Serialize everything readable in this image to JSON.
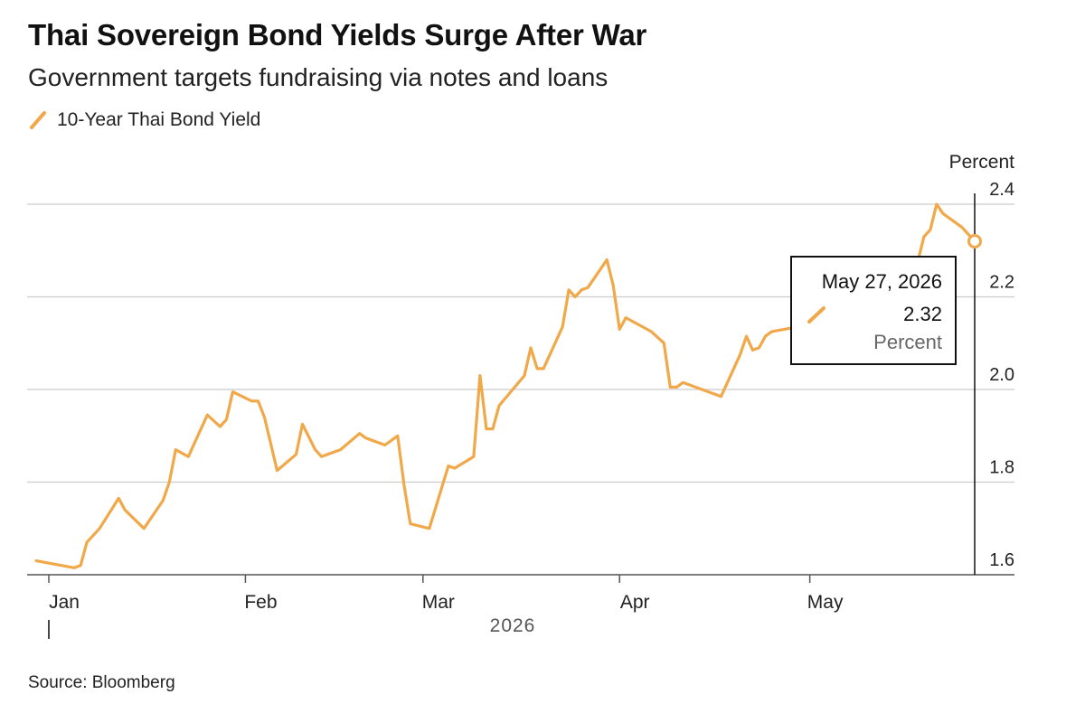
{
  "header": {
    "title": "Thai Sovereign Bond Yields Surge After War",
    "subtitle": "Government targets fundraising via notes and loans"
  },
  "legend": {
    "label": "10-Year Thai Bond Yield",
    "color": "#f0a848"
  },
  "source": "Source: Bloomberg",
  "tooltip": {
    "date": "May 27, 2026",
    "value": "2.32",
    "unit": "Percent"
  },
  "chart_data": {
    "type": "line",
    "title": "Thai Sovereign Bond Yields Surge After War",
    "subtitle": "Government targets fundraising via notes and loans",
    "ylabel": "Percent",
    "xlabel": "2026",
    "ylim": [
      1.6,
      2.4
    ],
    "yticks": [
      1.6,
      1.8,
      2.0,
      2.2,
      2.4
    ],
    "ytick_labels": [
      "1.6",
      "1.8",
      "2.0",
      "2.2",
      "2.4"
    ],
    "xticks": [
      {
        "label": "Jan",
        "date": "2026-01-01"
      },
      {
        "label": "Feb",
        "date": "2026-02-01"
      },
      {
        "label": "Mar",
        "date": "2026-03-01"
      },
      {
        "label": "Apr",
        "date": "2026-04-01"
      },
      {
        "label": "May",
        "date": "2026-05-01"
      }
    ],
    "grid": true,
    "legend_position": "top-left",
    "series": [
      {
        "name": "10-Year Thai Bond Yield",
        "color": "#f0a848",
        "points": [
          [
            "2025-12-30",
            1.63
          ],
          [
            "2026-01-05",
            1.615
          ],
          [
            "2026-01-06",
            1.62
          ],
          [
            "2026-01-07",
            1.67
          ],
          [
            "2026-01-09",
            1.7
          ],
          [
            "2026-01-12",
            1.765
          ],
          [
            "2026-01-13",
            1.74
          ],
          [
            "2026-01-16",
            1.7
          ],
          [
            "2026-01-19",
            1.76
          ],
          [
            "2026-01-20",
            1.8
          ],
          [
            "2026-01-21",
            1.87
          ],
          [
            "2026-01-23",
            1.855
          ],
          [
            "2026-01-26",
            1.945
          ],
          [
            "2026-01-28",
            1.92
          ],
          [
            "2026-01-29",
            1.935
          ],
          [
            "2026-01-30",
            1.995
          ],
          [
            "2026-02-02",
            1.975
          ],
          [
            "2026-02-03",
            1.975
          ],
          [
            "2026-02-04",
            1.94
          ],
          [
            "2026-02-06",
            1.825
          ],
          [
            "2026-02-09",
            1.86
          ],
          [
            "2026-02-10",
            1.925
          ],
          [
            "2026-02-12",
            1.87
          ],
          [
            "2026-02-13",
            1.855
          ],
          [
            "2026-02-16",
            1.87
          ],
          [
            "2026-02-19",
            1.905
          ],
          [
            "2026-02-20",
            1.895
          ],
          [
            "2026-02-23",
            1.88
          ],
          [
            "2026-02-25",
            1.9
          ],
          [
            "2026-02-26",
            1.795
          ],
          [
            "2026-02-27",
            1.71
          ],
          [
            "2026-03-02",
            1.7
          ],
          [
            "2026-03-05",
            1.835
          ],
          [
            "2026-03-06",
            1.83
          ],
          [
            "2026-03-09",
            1.855
          ],
          [
            "2026-03-10",
            2.03
          ],
          [
            "2026-03-11",
            1.915
          ],
          [
            "2026-03-12",
            1.915
          ],
          [
            "2026-03-13",
            1.965
          ],
          [
            "2026-03-17",
            2.03
          ],
          [
            "2026-03-18",
            2.09
          ],
          [
            "2026-03-19",
            2.045
          ],
          [
            "2026-03-20",
            2.045
          ],
          [
            "2026-03-23",
            2.135
          ],
          [
            "2026-03-24",
            2.215
          ],
          [
            "2026-03-25",
            2.2
          ],
          [
            "2026-03-26",
            2.215
          ],
          [
            "2026-03-27",
            2.22
          ],
          [
            "2026-03-30",
            2.28
          ],
          [
            "2026-03-31",
            2.225
          ],
          [
            "2026-04-01",
            2.13
          ],
          [
            "2026-04-02",
            2.155
          ],
          [
            "2026-04-06",
            2.125
          ],
          [
            "2026-04-08",
            2.1
          ],
          [
            "2026-04-09",
            2.005
          ],
          [
            "2026-04-10",
            2.005
          ],
          [
            "2026-04-11",
            2.015
          ],
          [
            "2026-04-17",
            1.985
          ],
          [
            "2026-04-20",
            2.075
          ],
          [
            "2026-04-21",
            2.115
          ],
          [
            "2026-04-22",
            2.085
          ],
          [
            "2026-04-23",
            2.09
          ],
          [
            "2026-04-24",
            2.115
          ],
          [
            "2026-04-25",
            2.125
          ],
          [
            "2026-04-29",
            2.135
          ],
          [
            "2026-05-04",
            2.14
          ],
          [
            "2026-05-18",
            2.275
          ],
          [
            "2026-05-19",
            2.33
          ],
          [
            "2026-05-20",
            2.345
          ],
          [
            "2026-05-21",
            2.4
          ],
          [
            "2026-05-22",
            2.38
          ],
          [
            "2026-05-25",
            2.35
          ],
          [
            "2026-05-27",
            2.32
          ]
        ]
      }
    ]
  }
}
